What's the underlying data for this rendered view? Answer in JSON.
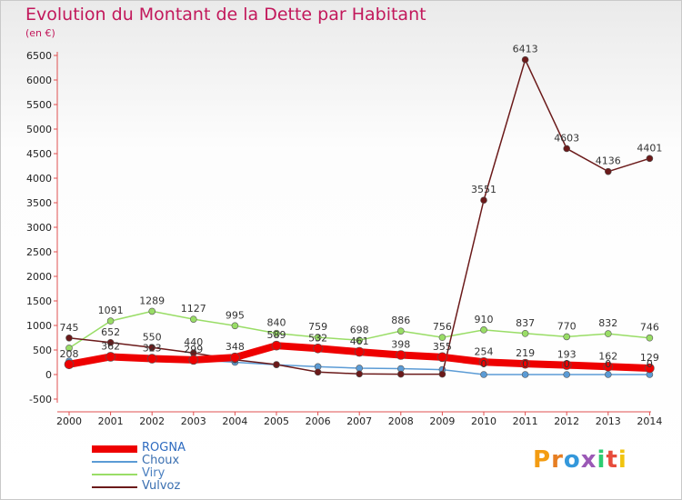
{
  "header": {
    "title": "Evolution du Montant de la Dette par Habitant",
    "unit": "(en €)"
  },
  "logo": {
    "text": "Proxiti",
    "colors": [
      "#f39c12",
      "#e67e22",
      "#3498db",
      "#9b59b6",
      "#2ecc71",
      "#e74c3c",
      "#f1c40f"
    ]
  },
  "chart_data": {
    "type": "line",
    "categories": [
      "2000",
      "2001",
      "2002",
      "2003",
      "2004",
      "2005",
      "2006",
      "2007",
      "2008",
      "2009",
      "2010",
      "2011",
      "2012",
      "2013",
      "2014"
    ],
    "ylim": [
      -500,
      6500
    ],
    "yticks": [
      "-500",
      "0",
      "500",
      "1000",
      "1500",
      "2000",
      "2500",
      "3000",
      "3500",
      "4000",
      "4500",
      "5000",
      "5500",
      "6000",
      "6500"
    ],
    "grid": false,
    "series": [
      {
        "name": "ROGNA",
        "color": "#ee0000",
        "width": 8,
        "values": [
          208,
          362,
          323,
          299,
          348,
          589,
          532,
          461,
          398,
          355,
          254,
          219,
          193,
          162,
          129
        ],
        "labels": [
          "208",
          "362",
          "323",
          "299",
          "348",
          "589",
          "532",
          "461",
          "398",
          "355",
          "254",
          "219",
          "193",
          "162",
          "129"
        ]
      },
      {
        "name": "Choux",
        "color": "#5b9bd5",
        "width": 1.5,
        "values": [
          275,
          352,
          330,
          300,
          250,
          200,
          160,
          130,
          120,
          100,
          0,
          0,
          0,
          0,
          0
        ],
        "labels": [
          "",
          "",
          "",
          "",
          "",
          "",
          "",
          "",
          "",
          "",
          "0",
          "0",
          "0",
          "0",
          "0"
        ]
      },
      {
        "name": "Viry",
        "color": "#99dd66",
        "width": 1.5,
        "values": [
          539,
          1091,
          1289,
          1127,
          995,
          840,
          759,
          698,
          886,
          756,
          910,
          837,
          770,
          832,
          746
        ],
        "labels": [
          "",
          "1091",
          "1289",
          "1127",
          "995",
          "840",
          "759",
          "698",
          "886",
          "756",
          "910",
          "837",
          "770",
          "832",
          "746"
        ]
      },
      {
        "name": "Vulvoz",
        "color": "#6b1a1a",
        "width": 1.5,
        "values": [
          745,
          652,
          550,
          440,
          300,
          203,
          50,
          13,
          8,
          8,
          3551,
          6413,
          4603,
          4136,
          4401
        ],
        "labels": [
          "745",
          "652",
          "550",
          "440",
          "",
          "",
          "",
          "",
          "",
          "",
          "3551",
          "6413",
          "4603",
          "4136",
          "4401"
        ]
      }
    ]
  }
}
